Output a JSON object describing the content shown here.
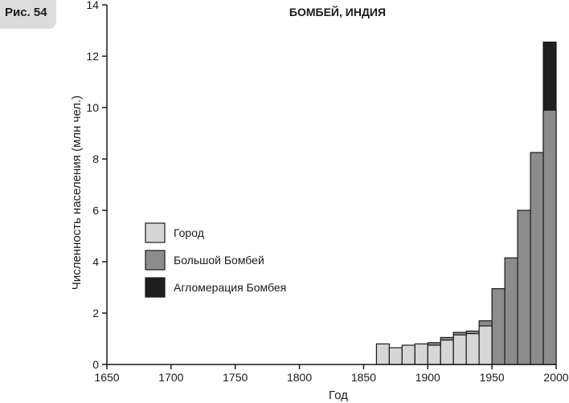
{
  "figure_label": "Рис. 54",
  "colors": {
    "city": "#d6d6d6",
    "greater": "#8c8c8c",
    "agglomeration": "#1f1f1f",
    "axis": "#1a1a1a"
  },
  "chart_data": {
    "type": "bar",
    "title": "БОМБЕЙ, ИНДИЯ",
    "xlabel": "Год",
    "ylabel": "Численность населения (млн чел.)",
    "xlim": [
      1650,
      2000
    ],
    "ylim": [
      0,
      14
    ],
    "bar_width_years": 10,
    "xticks": [
      1650,
      1700,
      1750,
      1800,
      1850,
      1900,
      1950,
      2000
    ],
    "yticks": [
      0,
      2,
      4,
      6,
      8,
      10,
      12,
      14
    ],
    "legend_position": "left",
    "series": [
      {
        "name": "Город",
        "color_key": "city",
        "x": [
          1860,
          1870,
          1880,
          1890,
          1900,
          1910,
          1920,
          1930,
          1940
        ],
        "values": [
          0.8,
          0.65,
          0.75,
          0.8,
          0.75,
          0.95,
          1.15,
          1.2,
          1.5
        ]
      },
      {
        "name": "Большой Бомбей",
        "color_key": "greater",
        "x": [
          1900,
          1910,
          1920,
          1930,
          1940,
          1950,
          1960,
          1970,
          1980,
          1990
        ],
        "values": [
          0.85,
          1.05,
          1.25,
          1.3,
          1.7,
          2.95,
          4.15,
          6.0,
          8.25,
          9.9
        ]
      },
      {
        "name": "Агломерация Бомбея",
        "color_key": "agglomeration",
        "x": [
          1990
        ],
        "values": [
          12.55
        ]
      }
    ]
  }
}
